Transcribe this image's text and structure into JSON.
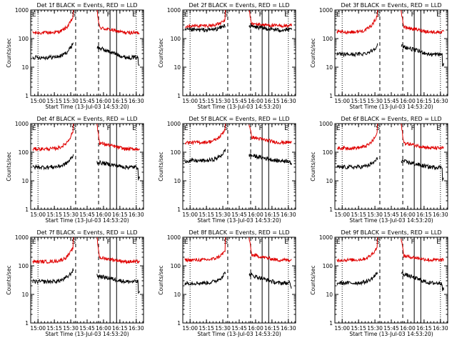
{
  "chart_data": {
    "type": "line",
    "yscale": "log",
    "ylim": [
      1,
      1000
    ],
    "xlim": [
      "14:53:20",
      "16:36:40"
    ],
    "ytick_labels": [
      "1",
      "10",
      "100",
      "1000"
    ],
    "xtick_labels": [
      "15:00",
      "15:15",
      "15:30",
      "15:45",
      "16:00",
      "16:15",
      "16:30"
    ],
    "xlabel": "Start Time (13-Jul-03 14:53:20)",
    "ylabel": "Counts/sec",
    "legend": {
      "black": "Events",
      "red": "LLD"
    },
    "colors": {
      "events": "#000000",
      "lld": "#e00000",
      "axes": "#000000"
    },
    "marker_labels": [
      "E",
      "S",
      "F",
      "E"
    ],
    "panels": [
      {
        "title": "Det 1f BLACK = Events, RED = LLD",
        "markers": {
          "dotted": [
            15.0,
            16.5
          ],
          "dashed": [
            15.575,
            15.925
          ],
          "solid": [
            16.1,
            16.2
          ]
        },
        "segments": [
          [
            14.92,
            15.54
          ],
          [
            15.9,
            16.55
          ]
        ],
        "red_base": 160,
        "red_pre_peak": 600,
        "red_post_start": 250,
        "black_base": 22,
        "black_pre_peak": 75,
        "black_post_start": 50,
        "black_end_drop": 12
      },
      {
        "title": "Det 2f BLACK = Events, RED = LLD",
        "markers": {
          "dotted": [
            15.0,
            16.5
          ],
          "dashed": [
            15.575,
            15.925
          ],
          "solid": [
            16.1,
            16.2
          ]
        },
        "segments": [
          [
            14.92,
            15.54
          ],
          [
            15.9,
            16.55
          ]
        ],
        "red_base": 280,
        "red_pre_peak": 450,
        "red_post_start": 330,
        "black_base": 200,
        "black_pre_peak": 300,
        "black_post_start": 270,
        "black_end_drop": 210
      },
      {
        "title": "Det 3f BLACK = Events, RED = LLD",
        "markers": {
          "dotted": [
            15.0,
            16.5
          ],
          "dashed": [
            15.575,
            15.925
          ],
          "solid": [
            16.1,
            16.2
          ]
        },
        "segments": [
          [
            14.92,
            15.54
          ],
          [
            15.9,
            16.55
          ]
        ],
        "red_base": 170,
        "red_pre_peak": 700,
        "red_post_start": 260,
        "black_base": 28,
        "black_pre_peak": 60,
        "black_post_start": 55,
        "black_end_drop": 12
      },
      {
        "title": "Det 4f BLACK = Events, RED = LLD",
        "markers": {
          "dotted": [
            15.0,
            16.5
          ],
          "dashed": [
            15.575,
            15.925
          ],
          "solid": [
            16.1,
            16.2
          ]
        },
        "segments": [
          [
            14.92,
            15.54
          ],
          [
            15.9,
            16.55
          ]
        ],
        "red_base": 130,
        "red_pre_peak": 600,
        "red_post_start": 220,
        "black_base": 30,
        "black_pre_peak": 80,
        "black_post_start": 45,
        "black_end_drop": 12
      },
      {
        "title": "Det 5f BLACK = Events, RED = LLD",
        "markers": {
          "dotted": [
            15.0,
            16.5
          ],
          "dashed": [
            15.575,
            15.925
          ],
          "solid": [
            16.1,
            16.2
          ]
        },
        "segments": [
          [
            14.92,
            15.54
          ],
          [
            15.9,
            16.55
          ]
        ],
        "red_base": 220,
        "red_pre_peak": 700,
        "red_post_start": 350,
        "black_base": 50,
        "black_pre_peak": 120,
        "black_post_start": 80,
        "black_end_drop": 35
      },
      {
        "title": "Det 6f BLACK = Events, RED = LLD",
        "markers": {
          "dotted": [
            15.0,
            16.5
          ],
          "dashed": [
            15.575,
            15.925
          ],
          "solid": [
            16.1,
            16.2
          ]
        },
        "segments": [
          [
            14.92,
            15.54
          ],
          [
            15.9,
            16.55
          ]
        ],
        "red_base": 140,
        "red_pre_peak": 500,
        "red_post_start": 220,
        "black_base": 30,
        "black_pre_peak": 60,
        "black_post_start": 50,
        "black_end_drop": 12
      },
      {
        "title": "Det 7f BLACK = Events, RED = LLD",
        "markers": {
          "dotted": [
            15.0,
            16.5
          ],
          "dashed": [
            15.575,
            15.925
          ],
          "solid": [
            16.1,
            16.2
          ]
        },
        "segments": [
          [
            14.92,
            15.54
          ],
          [
            15.9,
            16.55
          ]
        ],
        "red_base": 140,
        "red_pre_peak": 450,
        "red_post_start": 200,
        "black_base": 28,
        "black_pre_peak": 75,
        "black_post_start": 45,
        "black_end_drop": 12
      },
      {
        "title": "Det 8f BLACK = Events, RED = LLD",
        "markers": {
          "dotted": [
            15.0,
            16.5
          ],
          "dashed": [
            15.575,
            15.925
          ],
          "solid": [
            16.1,
            16.2
          ]
        },
        "segments": [
          [
            14.92,
            15.54
          ],
          [
            15.9,
            16.55
          ]
        ],
        "red_base": 160,
        "red_pre_peak": 350,
        "red_post_start": 250,
        "black_base": 25,
        "black_pre_peak": 60,
        "black_post_start": 50,
        "black_end_drop": 18
      },
      {
        "title": "Det 9f BLACK = Events, RED = LLD",
        "markers": {
          "dotted": [
            15.0,
            16.5
          ],
          "dashed": [
            15.575,
            15.925
          ],
          "solid": [
            16.1,
            16.2
          ]
        },
        "segments": [
          [
            14.92,
            15.54
          ],
          [
            15.9,
            16.55
          ]
        ],
        "red_base": 160,
        "red_pre_peak": 500,
        "red_post_start": 230,
        "black_base": 25,
        "black_pre_peak": 60,
        "black_post_start": 55,
        "black_end_drop": 15
      }
    ]
  }
}
